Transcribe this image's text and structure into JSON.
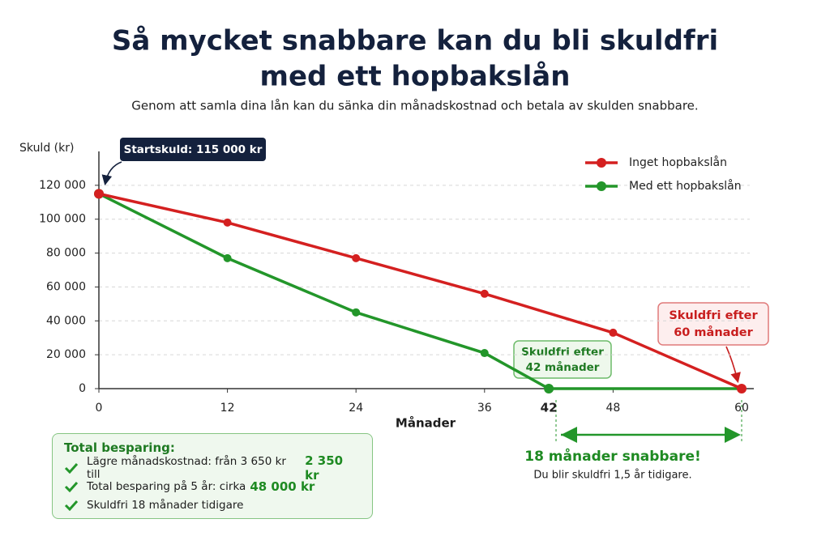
{
  "chart_data": {
    "type": "line",
    "title": [
      "Så mycket snabbare kan du bli skuldfri",
      "med ett hopbakslån"
    ],
    "subtitle": "Genom att samla dina lån kan du sänka din månadskostnad och betala av skulden snabbare.",
    "ylabel": "Skuld (kr)",
    "xlabel": "Månader",
    "xlim": [
      0,
      60
    ],
    "xticks": [
      0,
      12,
      24,
      36,
      42,
      48,
      60
    ],
    "ylim": [
      0,
      140000
    ],
    "yticks": [
      {
        "value": 0,
        "label": "0"
      },
      {
        "value": 20000,
        "label": "20 000"
      },
      {
        "value": 40000,
        "label": "40 000"
      },
      {
        "value": 60000,
        "label": "60 000"
      },
      {
        "value": 80000,
        "label": "80 000"
      },
      {
        "value": 100000,
        "label": "100 000"
      },
      {
        "value": 120000,
        "label": "120 000"
      }
    ],
    "grid": true,
    "legend": "upper right",
    "series": [
      {
        "name": "Inget hopbakslån",
        "color": "#d42020",
        "x": [
          0,
          12,
          24,
          36,
          48,
          60
        ],
        "values": [
          115000,
          98000,
          77000,
          56000,
          33000,
          0
        ]
      },
      {
        "name": "Med ett hopbakslån",
        "color": "#23962a",
        "x": [
          0,
          12,
          24,
          36,
          42,
          60
        ],
        "values": [
          115000,
          77000,
          45000,
          21000,
          0,
          0
        ]
      }
    ],
    "annotations": {
      "start": "Startskuld: 115 000 kr",
      "green_end": [
        "Skuldfri efter",
        "42 månader"
      ],
      "red_end": [
        "Skuldfri efter",
        "60 månader"
      ],
      "faster": "18 månader snabbare!",
      "earlier": "Du blir skuldfri 1,5 år tidigare."
    }
  },
  "summary": {
    "heading": "Total besparing:",
    "items": [
      {
        "text": "Lägre månadskostnad: från 3 650 kr till",
        "highlight": "2 350 kr"
      },
      {
        "text": "Total besparing på 5 år: cirka",
        "highlight": "48 000 kr"
      },
      {
        "text": "Skuldfri 18 månader tidigare"
      }
    ]
  }
}
